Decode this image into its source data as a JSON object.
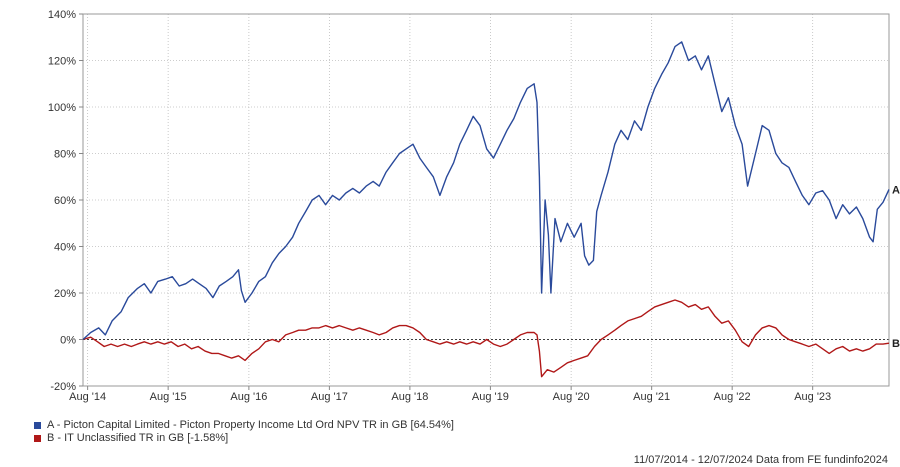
{
  "chart_data": {
    "type": "line",
    "title": "",
    "xlabel": "",
    "ylabel": "",
    "x_range": [
      "2014-07-11",
      "2024-07-12"
    ],
    "ylim": [
      -20,
      140
    ],
    "y_ticks": [
      -20,
      0,
      20,
      40,
      60,
      80,
      100,
      120,
      140
    ],
    "y_tick_labels": [
      "-20%",
      "0%",
      "20%",
      "40%",
      "60%",
      "80%",
      "100%",
      "120%",
      "140%"
    ],
    "x_ticks": [
      "2014-08-01",
      "2015-08-01",
      "2016-08-01",
      "2017-08-01",
      "2018-08-01",
      "2019-08-01",
      "2020-08-01",
      "2021-08-01",
      "2022-08-01",
      "2023-08-01"
    ],
    "x_tick_labels": [
      "Aug '14",
      "Aug '15",
      "Aug '16",
      "Aug '17",
      "Aug '18",
      "Aug '19",
      "Aug '20",
      "Aug '21",
      "Aug '22",
      "Aug '23"
    ],
    "grid": true,
    "legend_position": "bottom-left",
    "series": [
      {
        "name": "A - Picton Capital Limited - Picton Property Income Ltd Ord NPV TR in GB [64.54%]",
        "end_label": "A",
        "color": "#2a4a9b",
        "points": [
          [
            "2014-07-11",
            0
          ],
          [
            "2014-08-15",
            3
          ],
          [
            "2014-09-20",
            5
          ],
          [
            "2014-10-20",
            2
          ],
          [
            "2014-11-20",
            8
          ],
          [
            "2014-12-31",
            12
          ],
          [
            "2015-02-01",
            18
          ],
          [
            "2015-03-15",
            22
          ],
          [
            "2015-04-15",
            24
          ],
          [
            "2015-05-15",
            20
          ],
          [
            "2015-06-15",
            25
          ],
          [
            "2015-07-20",
            26
          ],
          [
            "2015-08-20",
            27
          ],
          [
            "2015-09-20",
            23
          ],
          [
            "2015-10-20",
            24
          ],
          [
            "2015-11-20",
            26
          ],
          [
            "2015-12-20",
            24
          ],
          [
            "2016-01-20",
            22
          ],
          [
            "2016-02-20",
            18
          ],
          [
            "2016-03-20",
            23
          ],
          [
            "2016-04-20",
            25
          ],
          [
            "2016-05-20",
            27
          ],
          [
            "2016-06-15",
            30
          ],
          [
            "2016-06-28",
            21
          ],
          [
            "2016-07-15",
            16
          ],
          [
            "2016-08-15",
            20
          ],
          [
            "2016-09-15",
            25
          ],
          [
            "2016-10-15",
            27
          ],
          [
            "2016-11-15",
            33
          ],
          [
            "2016-12-15",
            37
          ],
          [
            "2017-01-15",
            40
          ],
          [
            "2017-02-15",
            44
          ],
          [
            "2017-03-15",
            50
          ],
          [
            "2017-04-15",
            55
          ],
          [
            "2017-05-15",
            60
          ],
          [
            "2017-06-15",
            62
          ],
          [
            "2017-07-15",
            58
          ],
          [
            "2017-08-15",
            62
          ],
          [
            "2017-09-15",
            60
          ],
          [
            "2017-10-15",
            63
          ],
          [
            "2017-11-15",
            65
          ],
          [
            "2017-12-15",
            63
          ],
          [
            "2018-01-15",
            66
          ],
          [
            "2018-02-15",
            68
          ],
          [
            "2018-03-15",
            66
          ],
          [
            "2018-04-15",
            72
          ],
          [
            "2018-05-15",
            76
          ],
          [
            "2018-06-15",
            80
          ],
          [
            "2018-07-15",
            82
          ],
          [
            "2018-08-15",
            84
          ],
          [
            "2018-09-15",
            78
          ],
          [
            "2018-10-15",
            74
          ],
          [
            "2018-11-15",
            70
          ],
          [
            "2018-12-15",
            62
          ],
          [
            "2019-01-15",
            70
          ],
          [
            "2019-02-15",
            76
          ],
          [
            "2019-03-15",
            84
          ],
          [
            "2019-04-15",
            90
          ],
          [
            "2019-05-15",
            96
          ],
          [
            "2019-06-15",
            92
          ],
          [
            "2019-07-15",
            82
          ],
          [
            "2019-08-15",
            78
          ],
          [
            "2019-09-15",
            84
          ],
          [
            "2019-10-15",
            90
          ],
          [
            "2019-11-15",
            95
          ],
          [
            "2019-12-15",
            102
          ],
          [
            "2020-01-15",
            108
          ],
          [
            "2020-02-15",
            110
          ],
          [
            "2020-02-28",
            102
          ],
          [
            "2020-03-10",
            70
          ],
          [
            "2020-03-20",
            20
          ],
          [
            "2020-04-05",
            60
          ],
          [
            "2020-04-20",
            45
          ],
          [
            "2020-05-01",
            20
          ],
          [
            "2020-05-20",
            52
          ],
          [
            "2020-06-15",
            42
          ],
          [
            "2020-07-15",
            50
          ],
          [
            "2020-08-15",
            44
          ],
          [
            "2020-09-15",
            50
          ],
          [
            "2020-10-01",
            36
          ],
          [
            "2020-10-20",
            32
          ],
          [
            "2020-11-10",
            34
          ],
          [
            "2020-11-25",
            55
          ],
          [
            "2020-12-15",
            62
          ],
          [
            "2021-01-15",
            72
          ],
          [
            "2021-02-15",
            84
          ],
          [
            "2021-03-15",
            90
          ],
          [
            "2021-04-15",
            86
          ],
          [
            "2021-05-15",
            94
          ],
          [
            "2021-06-15",
            90
          ],
          [
            "2021-07-15",
            100
          ],
          [
            "2021-08-15",
            108
          ],
          [
            "2021-09-15",
            114
          ],
          [
            "2021-10-15",
            119
          ],
          [
            "2021-11-15",
            126
          ],
          [
            "2021-12-15",
            128
          ],
          [
            "2022-01-15",
            120
          ],
          [
            "2022-02-15",
            122
          ],
          [
            "2022-03-15",
            116
          ],
          [
            "2022-04-15",
            122
          ],
          [
            "2022-05-15",
            110
          ],
          [
            "2022-06-15",
            98
          ],
          [
            "2022-07-15",
            104
          ],
          [
            "2022-08-15",
            92
          ],
          [
            "2022-09-15",
            84
          ],
          [
            "2022-10-10",
            66
          ],
          [
            "2022-11-15",
            80
          ],
          [
            "2022-12-15",
            92
          ],
          [
            "2023-01-15",
            90
          ],
          [
            "2023-02-15",
            80
          ],
          [
            "2023-03-15",
            76
          ],
          [
            "2023-04-15",
            74
          ],
          [
            "2023-05-15",
            68
          ],
          [
            "2023-06-15",
            62
          ],
          [
            "2023-07-15",
            58
          ],
          [
            "2023-08-15",
            63
          ],
          [
            "2023-09-15",
            64
          ],
          [
            "2023-10-15",
            60
          ],
          [
            "2023-11-15",
            52
          ],
          [
            "2023-12-15",
            58
          ],
          [
            "2024-01-15",
            54
          ],
          [
            "2024-02-15",
            57
          ],
          [
            "2024-03-15",
            52
          ],
          [
            "2024-04-15",
            44
          ],
          [
            "2024-05-01",
            42
          ],
          [
            "2024-05-20",
            56
          ],
          [
            "2024-06-15",
            59
          ],
          [
            "2024-07-12",
            64.54
          ]
        ]
      },
      {
        "name": "B - IT Unclassified TR in GB [-1.58%]",
        "end_label": "B",
        "color": "#b01818",
        "points": [
          [
            "2014-07-11",
            0
          ],
          [
            "2014-08-15",
            1
          ],
          [
            "2014-09-15",
            -1
          ],
          [
            "2014-10-15",
            -3
          ],
          [
            "2014-11-15",
            -2
          ],
          [
            "2014-12-15",
            -3
          ],
          [
            "2015-01-15",
            -2
          ],
          [
            "2015-02-15",
            -3
          ],
          [
            "2015-03-15",
            -2
          ],
          [
            "2015-04-15",
            -1
          ],
          [
            "2015-05-15",
            -2
          ],
          [
            "2015-06-15",
            -1
          ],
          [
            "2015-07-15",
            -2
          ],
          [
            "2015-08-15",
            -1
          ],
          [
            "2015-09-15",
            -3
          ],
          [
            "2015-10-15",
            -2
          ],
          [
            "2015-11-15",
            -4
          ],
          [
            "2015-12-15",
            -3
          ],
          [
            "2016-01-15",
            -5
          ],
          [
            "2016-02-15",
            -6
          ],
          [
            "2016-03-15",
            -6
          ],
          [
            "2016-04-15",
            -7
          ],
          [
            "2016-05-15",
            -8
          ],
          [
            "2016-06-15",
            -7
          ],
          [
            "2016-07-15",
            -9
          ],
          [
            "2016-08-15",
            -6
          ],
          [
            "2016-09-15",
            -4
          ],
          [
            "2016-10-15",
            -1
          ],
          [
            "2016-11-15",
            0
          ],
          [
            "2016-12-15",
            -1
          ],
          [
            "2017-01-15",
            2
          ],
          [
            "2017-02-15",
            3
          ],
          [
            "2017-03-15",
            4
          ],
          [
            "2017-04-15",
            4
          ],
          [
            "2017-05-15",
            5
          ],
          [
            "2017-06-15",
            5
          ],
          [
            "2017-07-15",
            6
          ],
          [
            "2017-08-15",
            5
          ],
          [
            "2017-09-15",
            6
          ],
          [
            "2017-10-15",
            5
          ],
          [
            "2017-11-15",
            4
          ],
          [
            "2017-12-15",
            5
          ],
          [
            "2018-01-15",
            4
          ],
          [
            "2018-02-15",
            3
          ],
          [
            "2018-03-15",
            2
          ],
          [
            "2018-04-15",
            3
          ],
          [
            "2018-05-15",
            5
          ],
          [
            "2018-06-15",
            6
          ],
          [
            "2018-07-15",
            6
          ],
          [
            "2018-08-15",
            5
          ],
          [
            "2018-09-15",
            3
          ],
          [
            "2018-10-15",
            0
          ],
          [
            "2018-11-15",
            -1
          ],
          [
            "2018-12-15",
            -2
          ],
          [
            "2019-01-15",
            -1
          ],
          [
            "2019-02-15",
            -2
          ],
          [
            "2019-03-15",
            -1
          ],
          [
            "2019-04-15",
            -2
          ],
          [
            "2019-05-15",
            -1
          ],
          [
            "2019-06-15",
            -2
          ],
          [
            "2019-07-15",
            0
          ],
          [
            "2019-08-15",
            -2
          ],
          [
            "2019-09-15",
            -3
          ],
          [
            "2019-10-15",
            -2
          ],
          [
            "2019-11-15",
            0
          ],
          [
            "2019-12-15",
            2
          ],
          [
            "2020-01-15",
            3
          ],
          [
            "2020-02-15",
            3
          ],
          [
            "2020-02-28",
            2
          ],
          [
            "2020-03-10",
            -5
          ],
          [
            "2020-03-20",
            -16
          ],
          [
            "2020-04-15",
            -13
          ],
          [
            "2020-05-15",
            -14
          ],
          [
            "2020-06-15",
            -12
          ],
          [
            "2020-07-15",
            -10
          ],
          [
            "2020-08-15",
            -9
          ],
          [
            "2020-09-15",
            -8
          ],
          [
            "2020-10-15",
            -7
          ],
          [
            "2020-11-15",
            -3
          ],
          [
            "2020-12-15",
            0
          ],
          [
            "2021-01-15",
            2
          ],
          [
            "2021-02-15",
            4
          ],
          [
            "2021-03-15",
            6
          ],
          [
            "2021-04-15",
            8
          ],
          [
            "2021-05-15",
            9
          ],
          [
            "2021-06-15",
            10
          ],
          [
            "2021-07-15",
            12
          ],
          [
            "2021-08-15",
            14
          ],
          [
            "2021-09-15",
            15
          ],
          [
            "2021-10-15",
            16
          ],
          [
            "2021-11-15",
            17
          ],
          [
            "2021-12-15",
            16
          ],
          [
            "2022-01-15",
            14
          ],
          [
            "2022-02-15",
            15
          ],
          [
            "2022-03-15",
            13
          ],
          [
            "2022-04-15",
            14
          ],
          [
            "2022-05-15",
            10
          ],
          [
            "2022-06-15",
            7
          ],
          [
            "2022-07-15",
            8
          ],
          [
            "2022-08-15",
            4
          ],
          [
            "2022-09-15",
            -1
          ],
          [
            "2022-10-15",
            -3
          ],
          [
            "2022-11-15",
            2
          ],
          [
            "2022-12-15",
            5
          ],
          [
            "2023-01-15",
            6
          ],
          [
            "2023-02-15",
            5
          ],
          [
            "2023-03-15",
            2
          ],
          [
            "2023-04-15",
            0
          ],
          [
            "2023-05-15",
            -1
          ],
          [
            "2023-06-15",
            -2
          ],
          [
            "2023-07-15",
            -3
          ],
          [
            "2023-08-15",
            -2
          ],
          [
            "2023-09-15",
            -4
          ],
          [
            "2023-10-15",
            -6
          ],
          [
            "2023-11-15",
            -4
          ],
          [
            "2023-12-15",
            -3
          ],
          [
            "2024-01-15",
            -5
          ],
          [
            "2024-02-15",
            -4
          ],
          [
            "2024-03-15",
            -5
          ],
          [
            "2024-04-15",
            -4
          ],
          [
            "2024-05-15",
            -2
          ],
          [
            "2024-06-15",
            -2
          ],
          [
            "2024-07-12",
            -1.58
          ]
        ]
      }
    ]
  },
  "legend": {
    "a": "A - Picton Capital Limited - Picton Property Income Ltd Ord NPV TR in GB [64.54%]",
    "b": "B - IT Unclassified TR in GB [-1.58%]"
  },
  "footer": "11/07/2014 - 12/07/2024 Data from FE fundinfo2024"
}
